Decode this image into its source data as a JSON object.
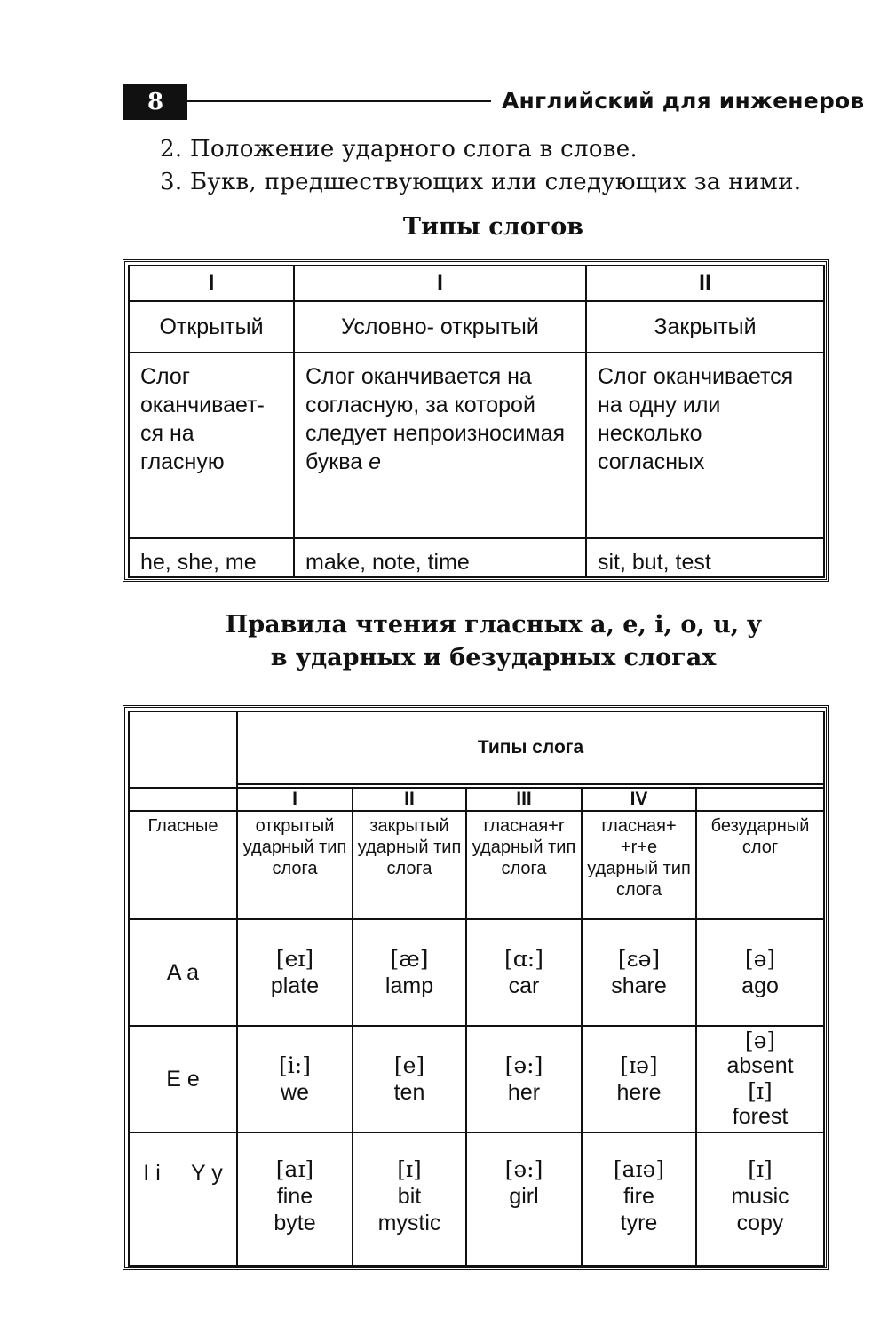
{
  "header": {
    "page_number": "8",
    "running_title": "Английский для инженеров"
  },
  "list": [
    "2. Положение ударного слога в слове.",
    "3. Букв, предшествующих или следующих за ними."
  ],
  "table1": {
    "title": "Типы слогов",
    "numerals": [
      "I",
      "I",
      "II"
    ],
    "headers": [
      "Открытый",
      "Условно- открытый",
      "Закрытый"
    ],
    "descriptions": [
      "Слог оканчивает-ся на гласную",
      "Слог оканчивается на согласную, за которой следует непроизносимая буква",
      "Слог оканчивается на одну или несколько согласных"
    ],
    "desc_letter": "е",
    "examples": [
      "he, she, me",
      "make, note, time",
      "sit, but, test"
    ]
  },
  "table2": {
    "title_line1": "Правила чтения гласных a, e, i, o, u, y",
    "title_line2": "в ударных и безударных слогах",
    "group_header": "Типы слога",
    "numerals": [
      "I",
      "II",
      "III",
      "IV",
      ""
    ],
    "first_header": "Гласные",
    "headers": [
      "открытый ударный тип слога",
      "закрытый ударный тип слога",
      "гласная+r ударный тип слога",
      "гласная+ +r+e ударный тип слога",
      "безударный слог"
    ],
    "rows": [
      {
        "vowel": "A a",
        "cells": [
          [
            "[eɪ]",
            "plate"
          ],
          [
            "[æ]",
            "lamp"
          ],
          [
            "[ɑ:]",
            "car"
          ],
          [
            "[ɛə]",
            "share"
          ],
          [
            "[ə]",
            "ago"
          ]
        ]
      },
      {
        "vowel": "E e",
        "cells": [
          [
            "[i:]",
            "we"
          ],
          [
            "[e]",
            "ten"
          ],
          [
            "[ə:]",
            "her"
          ],
          [
            "[ɪə]",
            "here"
          ],
          [
            "[ə]",
            "absent",
            "[ɪ]",
            "forest"
          ]
        ]
      },
      {
        "vowel": "I i     Y y",
        "cells": [
          [
            "[aɪ]",
            "fine",
            "byte"
          ],
          [
            "[ɪ]",
            "bit",
            "mystic"
          ],
          [
            "[ə:]",
            "girl"
          ],
          [
            "[aɪə]",
            "fire",
            "tyre"
          ],
          [
            "[ɪ]",
            "music",
            "copy"
          ]
        ]
      }
    ]
  }
}
